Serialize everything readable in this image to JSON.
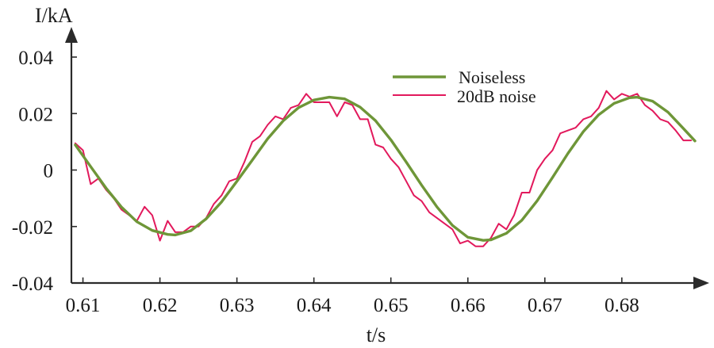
{
  "chart_data": {
    "type": "line",
    "title": "",
    "xlabel": "t/s",
    "ylabel": "I/kA",
    "xlim": [
      0.6085,
      0.6895
    ],
    "ylim": [
      -0.04,
      0.04
    ],
    "xticks": [
      0.61,
      0.62,
      0.63,
      0.64,
      0.65,
      0.66,
      0.67,
      0.68
    ],
    "xtick_labels": [
      "0.61",
      "0.62",
      "0.63",
      "0.64",
      "0.65",
      "0.66",
      "0.67",
      "0.68"
    ],
    "yticks": [
      0.04,
      0.02,
      0,
      -0.02,
      -0.04
    ],
    "ytick_labels": [
      "0.04",
      "0.02",
      "0",
      "-0.02",
      "-0.04"
    ],
    "grid": false,
    "legend": {
      "position": "top-right"
    },
    "series": [
      {
        "name": "Noiseless",
        "color": "#6e9638",
        "x": [
          0.609,
          0.611,
          0.613,
          0.615,
          0.617,
          0.619,
          0.621,
          0.622,
          0.624,
          0.626,
          0.628,
          0.63,
          0.632,
          0.634,
          0.636,
          0.638,
          0.64,
          0.642,
          0.644,
          0.646,
          0.648,
          0.65,
          0.652,
          0.654,
          0.656,
          0.658,
          0.66,
          0.662,
          0.663,
          0.665,
          0.667,
          0.669,
          0.671,
          0.673,
          0.675,
          0.677,
          0.679,
          0.681,
          0.682,
          0.684,
          0.686,
          0.688,
          0.6895
        ],
        "y": [
          0.0089,
          0.0012,
          -0.0064,
          -0.0131,
          -0.0183,
          -0.0214,
          -0.0228,
          -0.023,
          -0.0215,
          -0.0173,
          -0.0113,
          -0.004,
          0.0035,
          0.0111,
          0.0174,
          0.0221,
          0.0248,
          0.0258,
          0.0252,
          0.0223,
          0.0175,
          0.0107,
          0.0028,
          -0.0054,
          -0.0131,
          -0.0196,
          -0.0238,
          -0.0249,
          -0.0247,
          -0.0224,
          -0.0178,
          -0.0109,
          -0.0026,
          0.0059,
          0.0136,
          0.0196,
          0.0236,
          0.0256,
          0.0258,
          0.0244,
          0.0205,
          0.0147,
          0.0103
        ]
      },
      {
        "name": "20dB noise",
        "color": "#e2195c",
        "x": [
          0.609,
          0.61,
          0.611,
          0.612,
          0.613,
          0.614,
          0.615,
          0.616,
          0.617,
          0.618,
          0.619,
          0.62,
          0.621,
          0.622,
          0.623,
          0.624,
          0.625,
          0.626,
          0.627,
          0.628,
          0.629,
          0.63,
          0.631,
          0.632,
          0.633,
          0.634,
          0.635,
          0.636,
          0.637,
          0.638,
          0.639,
          0.64,
          0.641,
          0.642,
          0.643,
          0.644,
          0.645,
          0.646,
          0.647,
          0.648,
          0.649,
          0.65,
          0.651,
          0.652,
          0.653,
          0.654,
          0.655,
          0.656,
          0.657,
          0.658,
          0.659,
          0.66,
          0.661,
          0.662,
          0.663,
          0.664,
          0.665,
          0.666,
          0.667,
          0.668,
          0.669,
          0.67,
          0.671,
          0.672,
          0.673,
          0.674,
          0.675,
          0.676,
          0.677,
          0.678,
          0.679,
          0.68,
          0.681,
          0.682,
          0.683,
          0.684,
          0.685,
          0.686,
          0.687,
          0.688,
          0.689
        ],
        "y": [
          0.0095,
          0.007,
          -0.005,
          -0.003,
          -0.007,
          -0.01,
          -0.014,
          -0.016,
          -0.018,
          -0.013,
          -0.016,
          -0.025,
          -0.018,
          -0.022,
          -0.022,
          -0.02,
          -0.02,
          -0.017,
          -0.012,
          -0.009,
          -0.004,
          -0.003,
          0.003,
          0.01,
          0.012,
          0.016,
          0.019,
          0.018,
          0.022,
          0.023,
          0.027,
          0.024,
          0.024,
          0.024,
          0.019,
          0.024,
          0.023,
          0.018,
          0.018,
          0.009,
          0.008,
          0.004,
          0.001,
          -0.004,
          -0.009,
          -0.011,
          -0.015,
          -0.017,
          -0.019,
          -0.021,
          -0.026,
          -0.025,
          -0.027,
          -0.027,
          -0.024,
          -0.019,
          -0.021,
          -0.016,
          -0.008,
          -0.008,
          0.0,
          0.004,
          0.007,
          0.013,
          0.014,
          0.015,
          0.018,
          0.019,
          0.022,
          0.028,
          0.025,
          0.027,
          0.026,
          0.027,
          0.023,
          0.021,
          0.018,
          0.017,
          0.014,
          0.0105,
          0.0105
        ]
      }
    ]
  }
}
